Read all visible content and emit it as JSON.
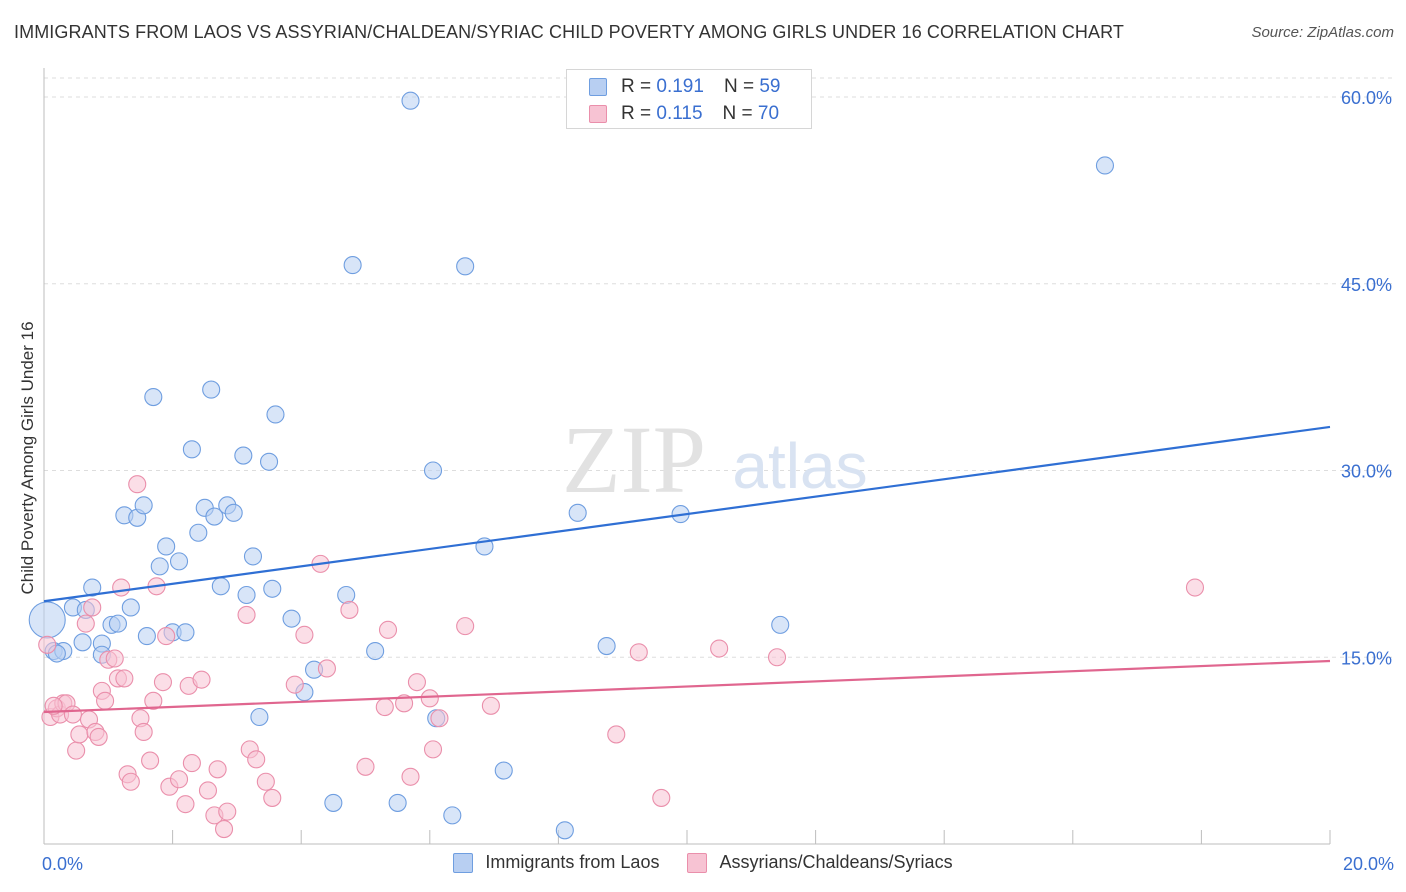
{
  "header": {
    "title": "IMMIGRANTS FROM LAOS VS ASSYRIAN/CHALDEAN/SYRIAC CHILD POVERTY AMONG GIRLS UNDER 16 CORRELATION CHART",
    "source": "Source: ZipAtlas.com"
  },
  "watermark": {
    "zip": "ZIP",
    "atlas": "atlas"
  },
  "legend_top": {
    "rows": [
      {
        "r_label": "R =",
        "r_value": "0.191",
        "n_label": "N =",
        "n_value": "59"
      },
      {
        "r_label": "R =",
        "r_value": "0.115",
        "n_label": "N =",
        "n_value": "70"
      }
    ]
  },
  "legend_bottom": {
    "series1": "Immigrants from Laos",
    "series2": "Assyrians/Chaldeans/Syriacs"
  },
  "colors": {
    "blue_fill": "#b8cff2",
    "blue_stroke": "#6f9ee0",
    "blue_line": "#2f6fd4",
    "pink_fill": "#f7c3d3",
    "pink_stroke": "#ea8fab",
    "pink_line": "#e0668f",
    "axis_label": "#3a6fd0",
    "grid": "#dddddd"
  },
  "chart_data": {
    "type": "scatter",
    "title": "IMMIGRANTS FROM LAOS VS ASSYRIAN/CHALDEAN/SYRIAC CHILD POVERTY AMONG GIRLS UNDER 16 CORRELATION CHART",
    "xlabel": "",
    "ylabel": "Child Poverty Among Girls Under 16",
    "xlim": [
      0,
      20
    ],
    "ylim": [
      0,
      60
    ],
    "x_ticks": [
      0,
      2,
      4,
      6,
      8,
      10,
      12,
      14,
      16,
      18,
      20
    ],
    "x_tick_labels": [
      {
        "value": 0,
        "label": "0.0%"
      },
      {
        "value": 20,
        "label": "20.0%"
      }
    ],
    "y_ticks": [
      {
        "value": 15,
        "label": "15.0%"
      },
      {
        "value": 30,
        "label": "30.0%"
      },
      {
        "value": 45,
        "label": "45.0%"
      },
      {
        "value": 60,
        "label": "60.0%"
      }
    ],
    "grid": true,
    "series": [
      {
        "name": "Immigrants from Laos",
        "color": "blue",
        "R": 0.191,
        "N": 59,
        "trend": {
          "x": [
            0,
            20
          ],
          "y": [
            19.5,
            33.5
          ]
        },
        "points": [
          [
            0.05,
            18.0,
            1
          ],
          [
            0.15,
            15.5,
            0
          ],
          [
            0.3,
            15.5,
            0
          ],
          [
            0.45,
            19.0,
            0
          ],
          [
            0.75,
            20.6,
            0
          ],
          [
            0.9,
            16.1,
            0
          ],
          [
            0.6,
            16.2,
            0
          ],
          [
            0.65,
            18.8,
            0
          ],
          [
            0.9,
            15.2,
            0
          ],
          [
            1.05,
            17.6,
            0
          ],
          [
            1.15,
            17.7,
            0
          ],
          [
            1.35,
            19.0,
            0
          ],
          [
            1.25,
            26.4,
            0
          ],
          [
            1.45,
            26.2,
            0
          ],
          [
            1.55,
            27.2,
            0
          ],
          [
            1.7,
            35.9,
            0
          ],
          [
            1.6,
            16.7,
            0
          ],
          [
            1.8,
            22.3,
            0
          ],
          [
            1.9,
            23.9,
            0
          ],
          [
            2.0,
            17.0,
            0
          ],
          [
            2.1,
            22.7,
            0
          ],
          [
            2.2,
            17.0,
            0
          ],
          [
            2.3,
            31.7,
            0
          ],
          [
            2.4,
            25.0,
            0
          ],
          [
            2.5,
            27.0,
            0
          ],
          [
            2.6,
            36.5,
            0
          ],
          [
            2.65,
            26.3,
            0
          ],
          [
            2.75,
            20.7,
            0
          ],
          [
            2.85,
            27.2,
            0
          ],
          [
            2.95,
            26.6,
            0
          ],
          [
            3.1,
            31.2,
            0
          ],
          [
            3.15,
            20.0,
            0
          ],
          [
            3.25,
            23.1,
            0
          ],
          [
            3.35,
            10.2,
            0
          ],
          [
            3.5,
            30.7,
            0
          ],
          [
            3.55,
            20.5,
            0
          ],
          [
            3.6,
            34.5,
            0
          ],
          [
            3.85,
            18.1,
            0
          ],
          [
            4.05,
            12.2,
            0
          ],
          [
            4.2,
            14.0,
            0
          ],
          [
            4.5,
            3.3,
            0
          ],
          [
            4.7,
            20.0,
            0
          ],
          [
            4.8,
            46.5,
            0
          ],
          [
            5.15,
            15.5,
            0
          ],
          [
            5.5,
            3.3,
            0
          ],
          [
            5.7,
            59.7,
            0
          ],
          [
            6.1,
            10.1,
            0
          ],
          [
            6.35,
            2.3,
            0
          ],
          [
            6.05,
            30.0,
            0
          ],
          [
            6.55,
            46.4,
            0
          ],
          [
            6.85,
            23.9,
            0
          ],
          [
            7.15,
            5.9,
            0
          ],
          [
            8.1,
            1.1,
            0
          ],
          [
            8.3,
            26.6,
            0
          ],
          [
            8.75,
            15.9,
            0
          ],
          [
            9.9,
            26.5,
            0
          ],
          [
            11.45,
            17.6,
            0
          ],
          [
            16.5,
            54.5,
            0
          ],
          [
            0.2,
            15.3,
            0
          ]
        ]
      },
      {
        "name": "Assyrians/Chaldeans/Syriacs",
        "color": "pink",
        "R": 0.115,
        "N": 70,
        "trend": {
          "x": [
            0,
            20
          ],
          "y": [
            10.6,
            14.7
          ]
        },
        "points": [
          [
            0.05,
            16.0,
            0
          ],
          [
            0.1,
            10.2,
            0
          ],
          [
            0.2,
            10.9,
            0
          ],
          [
            0.25,
            10.4,
            0
          ],
          [
            0.3,
            11.3,
            0
          ],
          [
            0.35,
            11.3,
            0
          ],
          [
            0.45,
            10.4,
            0
          ],
          [
            0.5,
            7.5,
            0
          ],
          [
            0.55,
            8.8,
            0
          ],
          [
            0.65,
            17.7,
            0
          ],
          [
            0.7,
            10.0,
            0
          ],
          [
            0.75,
            19.0,
            0
          ],
          [
            0.8,
            9.0,
            0
          ],
          [
            0.85,
            8.6,
            0
          ],
          [
            0.9,
            12.3,
            0
          ],
          [
            0.95,
            11.5,
            0
          ],
          [
            1.0,
            14.8,
            0
          ],
          [
            1.1,
            14.9,
            0
          ],
          [
            1.15,
            13.3,
            0
          ],
          [
            1.2,
            20.6,
            0
          ],
          [
            1.25,
            13.3,
            0
          ],
          [
            1.3,
            5.6,
            0
          ],
          [
            1.35,
            5.0,
            0
          ],
          [
            1.45,
            28.9,
            0
          ],
          [
            1.5,
            10.1,
            0
          ],
          [
            1.55,
            9.0,
            0
          ],
          [
            1.65,
            6.7,
            0
          ],
          [
            1.7,
            11.5,
            0
          ],
          [
            1.75,
            20.7,
            0
          ],
          [
            1.85,
            13.0,
            0
          ],
          [
            1.9,
            16.7,
            0
          ],
          [
            1.95,
            4.6,
            0
          ],
          [
            2.1,
            5.2,
            0
          ],
          [
            2.2,
            3.2,
            0
          ],
          [
            2.25,
            12.7,
            0
          ],
          [
            2.3,
            6.5,
            0
          ],
          [
            2.45,
            13.2,
            0
          ],
          [
            2.55,
            4.3,
            0
          ],
          [
            2.65,
            2.3,
            0
          ],
          [
            2.7,
            6.0,
            0
          ],
          [
            2.8,
            1.2,
            0
          ],
          [
            2.85,
            2.6,
            0
          ],
          [
            3.15,
            18.4,
            0
          ],
          [
            3.2,
            7.6,
            0
          ],
          [
            3.3,
            6.8,
            0
          ],
          [
            3.45,
            5.0,
            0
          ],
          [
            3.55,
            3.7,
            0
          ],
          [
            3.9,
            12.8,
            0
          ],
          [
            4.05,
            16.8,
            0
          ],
          [
            4.3,
            22.5,
            0
          ],
          [
            4.4,
            14.1,
            0
          ],
          [
            4.75,
            18.8,
            0
          ],
          [
            5.0,
            6.2,
            0
          ],
          [
            5.3,
            11.0,
            0
          ],
          [
            5.35,
            17.2,
            0
          ],
          [
            5.6,
            11.3,
            0
          ],
          [
            5.7,
            5.4,
            0
          ],
          [
            5.8,
            13.0,
            0
          ],
          [
            6.0,
            11.7,
            0
          ],
          [
            6.05,
            7.6,
            0
          ],
          [
            6.15,
            10.1,
            0
          ],
          [
            6.55,
            17.5,
            0
          ],
          [
            6.95,
            11.1,
            0
          ],
          [
            8.9,
            8.8,
            0
          ],
          [
            9.25,
            15.4,
            0
          ],
          [
            9.6,
            3.7,
            0
          ],
          [
            10.5,
            15.7,
            0
          ],
          [
            11.4,
            15.0,
            0
          ],
          [
            17.9,
            20.6,
            0
          ],
          [
            0.15,
            11.1,
            0
          ]
        ]
      }
    ]
  }
}
